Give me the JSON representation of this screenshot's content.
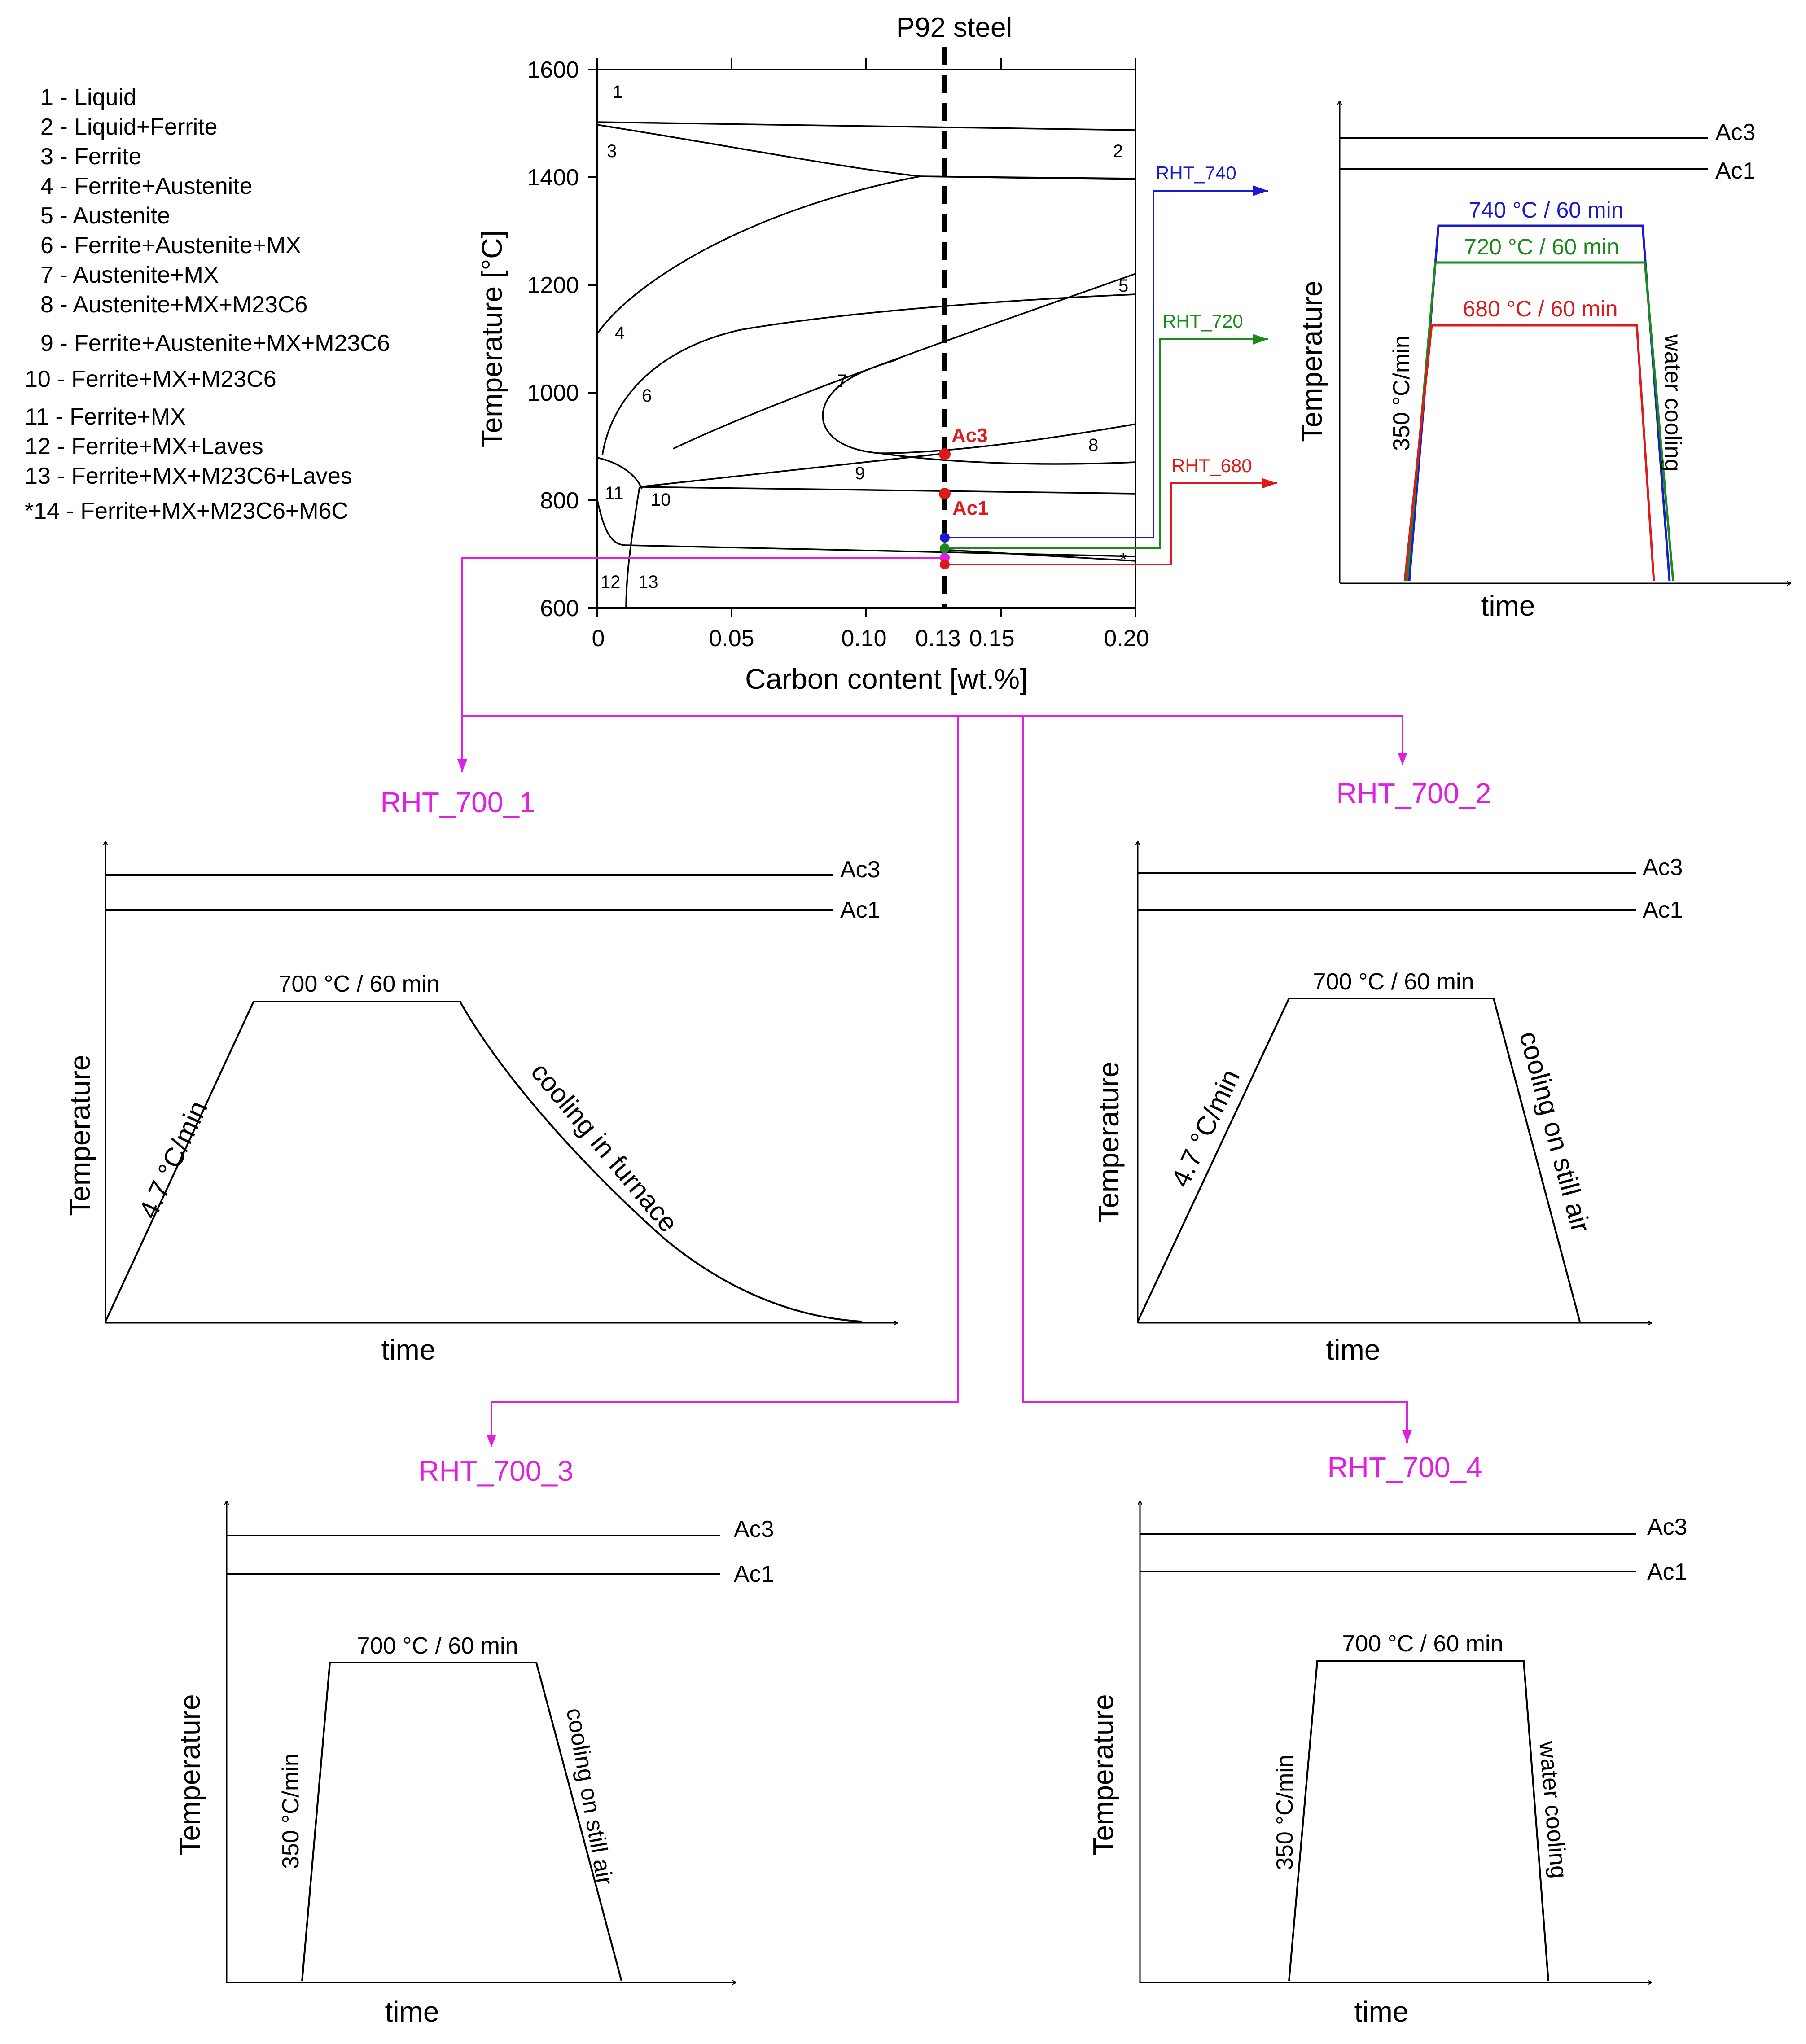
{
  "phase_diagram": {
    "title": "P92 steel",
    "xlabel": "Carbon content [wt.%]",
    "ylabel": "Temperature [°C]",
    "x_ticks": [
      "0",
      "0.05",
      "0.10",
      "0.13",
      "0.15",
      "0.20"
    ],
    "y_ticks": [
      "600",
      "800",
      "1000",
      "1200",
      "1400",
      "1600"
    ],
    "xlim": [
      0,
      0.2
    ],
    "ylim": [
      600,
      1600
    ],
    "region_numbers": [
      "1",
      "2",
      "3",
      "4",
      "5",
      "6",
      "7",
      "8",
      "9",
      "10",
      "11",
      "12",
      "13",
      "*"
    ],
    "ac3_label": "Ac3",
    "ac1_label": "Ac1",
    "ac3_temp": 885,
    "ac1_temp": 820,
    "marker_carbon": 0.13,
    "legend": [
      "1 - Liquid",
      "2 - Liquid+Ferrite",
      "3 - Ferrite",
      "4 - Ferrite+Austenite",
      "5 - Austenite",
      "6 - Ferrite+Austenite+MX",
      "7 - Austenite+MX",
      "8 - Austenite+MX+M23C6",
      "9 - Ferrite+Austenite+MX+M23C6",
      "10 - Ferrite+MX+M23C6",
      "11 - Ferrite+MX",
      "12 - Ferrite+MX+Laves",
      "13 - Ferrite+MX+M23C6+Laves",
      "*14 - Ferrite+MX+M23C6+M6C"
    ]
  },
  "colors": {
    "blue": "#1a1acc",
    "green": "#1a8a1a",
    "red": "#dd1a1a",
    "magenta": "#e020e0",
    "black": "#000000"
  },
  "rht_high": {
    "labels": [
      "RHT_740",
      "RHT_720",
      "RHT_680"
    ],
    "plateaus": [
      "740 °C / 60 min",
      "720 °C / 60 min",
      "680 °C / 60 min"
    ],
    "heating_rate": "350 °C/min",
    "cooling": "water cooling",
    "ylabel": "Temperature",
    "xlabel": "time",
    "ac3": "Ac3",
    "ac1": "Ac1"
  },
  "rht_700": [
    {
      "name": "RHT_700_1",
      "plateau": "700 °C / 60 min",
      "heating": "4.7 °C/min",
      "cooling": "cooling in furnace",
      "ylabel": "Temperature",
      "xlabel": "time",
      "ac3": "Ac3",
      "ac1": "Ac1"
    },
    {
      "name": "RHT_700_2",
      "plateau": "700 °C / 60 min",
      "heating": "4.7 °C/min",
      "cooling": "cooling on still air",
      "ylabel": "Temperature",
      "xlabel": "time",
      "ac3": "Ac3",
      "ac1": "Ac1"
    },
    {
      "name": "RHT_700_3",
      "plateau": "700 °C / 60 min",
      "heating": "350 °C/min",
      "cooling": "cooling on still air",
      "ylabel": "Temperature",
      "xlabel": "time",
      "ac3": "Ac3",
      "ac1": "Ac1"
    },
    {
      "name": "RHT_700_4",
      "plateau": "700 °C / 60 min",
      "heating": "350 °C/min",
      "cooling": "water cooling",
      "ylabel": "Temperature",
      "xlabel": "time",
      "ac3": "Ac3",
      "ac1": "Ac1"
    }
  ]
}
